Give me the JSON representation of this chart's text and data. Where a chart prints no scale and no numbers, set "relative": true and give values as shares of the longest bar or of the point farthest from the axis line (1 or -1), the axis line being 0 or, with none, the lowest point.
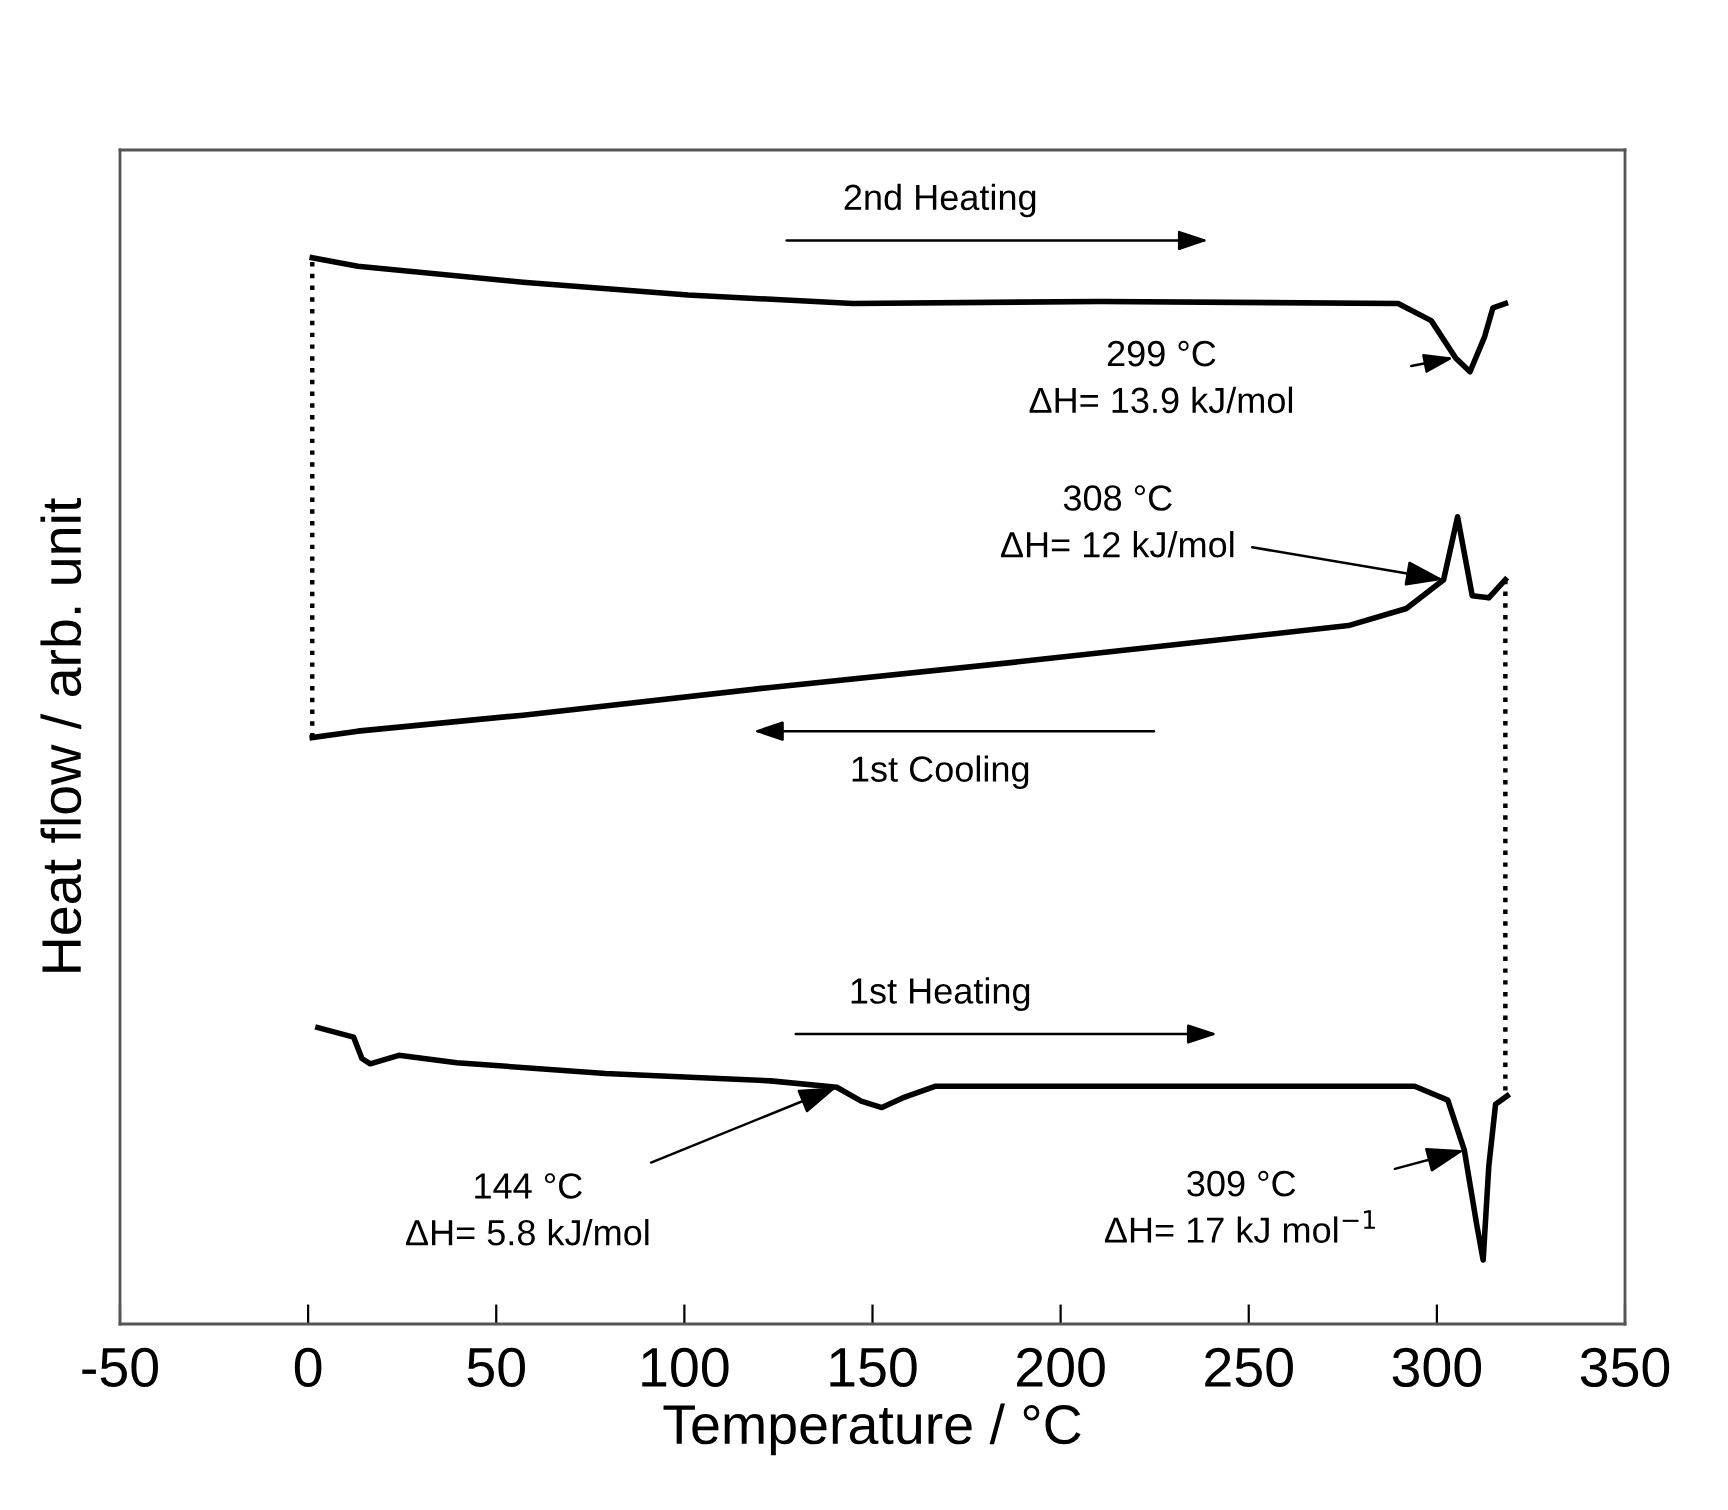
{
  "chart_data": {
    "type": "line",
    "relative": true,
    "xlabel": "Temperature / °C",
    "ylabel": "Heat flow / arb. unit",
    "xlim": [
      -50,
      350
    ],
    "xticks": [
      -50,
      0,
      50,
      100,
      150,
      200,
      250,
      300,
      350
    ],
    "tick_labels": "x",
    "grid": false,
    "legend": false,
    "marker": "none",
    "series": [
      {
        "color": "#000000",
        "line_style": "solid",
        "x": [
          1.1,
          13.2,
          57.1,
          101,
          144.8,
          210.7,
          289.7,
          298.5,
          305,
          308.8,
          312.7,
          314.9,
          318.2
        ],
        "values": [
          1.0,
          0.992,
          0.977,
          0.965,
          0.957,
          0.959,
          0.957,
          0.941,
          0.906,
          0.893,
          0.926,
          0.953,
          0.957
        ]
      },
      {
        "color": "#000000",
        "line_style": "solid",
        "x": [
          1.1,
          13.2,
          57.1,
          122.9,
          188.7,
          232.6,
          276.5,
          291.9,
          301.8,
          305.5,
          309.4,
          313.8,
          318.2
        ],
        "values": [
          0.55,
          0.556,
          0.571,
          0.597,
          0.621,
          0.638,
          0.655,
          0.671,
          0.698,
          0.757,
          0.683,
          0.681,
          0.698
        ]
      },
      {
        "color": "#000000",
        "line_style": "solid",
        "x": [
          2.6,
          12.1,
          14.3,
          16.5,
          24.1,
          39.5,
          79,
          122.9,
          140.5,
          147,
          152.5,
          158,
          166.8,
          210.7,
          254.6,
          294.1,
          302.9,
          307.3,
          310.6,
          312.3,
          313.8,
          315.6,
          318.7
        ],
        "values": [
          0.278,
          0.269,
          0.249,
          0.244,
          0.252,
          0.245,
          0.235,
          0.228,
          0.222,
          0.209,
          0.203,
          0.212,
          0.223,
          0.223,
          0.223,
          0.223,
          0.21,
          0.163,
          0.093,
          0.06,
          0.148,
          0.206,
          0.214
        ]
      },
      {
        "color": "#000000",
        "line_style": "dotted",
        "x": [
          1.1,
          1.1
        ],
        "values": [
          0.55,
          1.0
        ]
      },
      {
        "color": "#000000",
        "line_style": "dotted",
        "x": [
          318.2,
          318.2
        ],
        "values": [
          0.698,
          0.214
        ]
      }
    ],
    "annotations": [
      "2nd Heating",
      "1st Cooling",
      "1st Heating",
      "299 °C\nΔH= 13.9 kJ/mol",
      {
        "text": "308 °C\nΔH= 12 kJ/mol",
        "x": 301.8,
        "y": 0.698
      },
      {
        "text": "144 °C\nΔH= 5.8 kJ/mol",
        "x": 140.5,
        "y": 0.222
      },
      {
        "text": "309 °C\nΔH= 17 kJ mol$^{−1}$",
        "x": 307.3,
        "y": 0.163
      }
    ]
  }
}
